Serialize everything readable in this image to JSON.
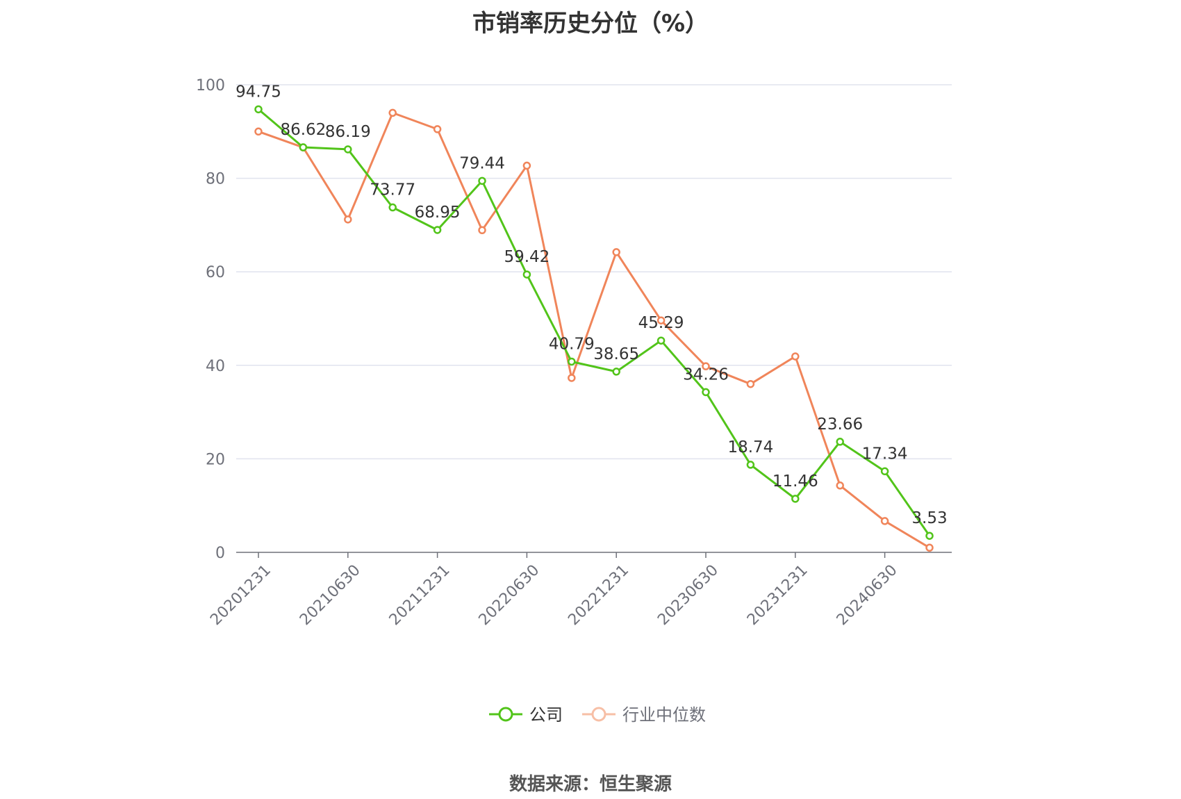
{
  "chart_data": {
    "type": "line",
    "title": "市销率历史分位（%）",
    "x": [
      "20201231",
      "20210331",
      "20210630",
      "20210930",
      "20211231",
      "20220331",
      "20220630",
      "20220930",
      "20221231",
      "20230331",
      "20230630",
      "20230930",
      "20231231",
      "20240331",
      "20240630",
      "20240930"
    ],
    "x_tick_labels": [
      "20201231",
      "20210630",
      "20211231",
      "20220630",
      "20221231",
      "20230630",
      "20231231",
      "20240630"
    ],
    "ylim": [
      0,
      100
    ],
    "y_ticks": [
      0,
      20,
      40,
      60,
      80,
      100
    ],
    "grid": true,
    "legend_position": "bottom-center",
    "series": [
      {
        "name": "公司",
        "color": "#52c41a",
        "show_labels": true,
        "values": [
          94.75,
          86.62,
          86.19,
          73.77,
          68.95,
          79.44,
          59.42,
          40.79,
          38.65,
          45.29,
          34.26,
          18.74,
          11.46,
          23.66,
          17.34,
          3.53
        ]
      },
      {
        "name": "行业中位数",
        "color": "#f0855a",
        "show_labels": false,
        "values": [
          90.0,
          86.6,
          71.2,
          94.0,
          90.5,
          68.9,
          82.7,
          37.3,
          64.2,
          49.6,
          39.8,
          36.0,
          41.9,
          14.3,
          6.7,
          1.0
        ]
      }
    ]
  },
  "source": "数据来源：恒生聚源"
}
